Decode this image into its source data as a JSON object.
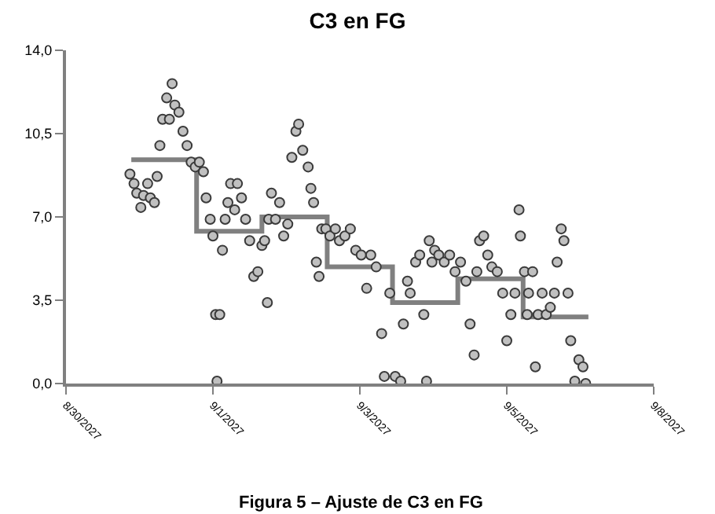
{
  "chart_data": {
    "type": "scatter",
    "title": "C3 en FG",
    "annotations": [
      "Figura 5 – Ajuste de C3 en FG"
    ],
    "xlim": [
      "2027-08-30",
      "2027-09-08"
    ],
    "xticks": [
      {
        "value": "2027-08-30",
        "label": "8/30/2027"
      },
      {
        "value": "2027-09-01T06:00",
        "label": "9/1/2027"
      },
      {
        "value": "2027-09-03T12:00",
        "label": "9/3/2027"
      },
      {
        "value": "2027-09-05T18:00",
        "label": "9/5/2027"
      },
      {
        "value": "2027-09-08",
        "label": "9/8/2027"
      }
    ],
    "ylim": [
      0,
      14
    ],
    "yticks": [
      {
        "value": 0,
        "label": "0,0"
      },
      {
        "value": 3.5,
        "label": "3,5"
      },
      {
        "value": 7,
        "label": "7,0"
      },
      {
        "value": 10.5,
        "label": "10,5"
      },
      {
        "value": 14,
        "label": "14,0"
      }
    ],
    "grid": false,
    "series": [
      {
        "type": "step",
        "marker": "none",
        "color": "#808080",
        "x": [
          "2027-08-31",
          "2027-09-01",
          "2027-09-02",
          "2027-09-03",
          "2027-09-04",
          "2027-09-05",
          "2027-09-06",
          "2027-09-07"
        ],
        "values": [
          9.4,
          6.4,
          7.0,
          4.9,
          3.4,
          4.4,
          2.8,
          2.8
        ]
      },
      {
        "marker": "circle",
        "color": "#c0c0c0",
        "x": [
          "2027-08-30T23:30",
          "2027-08-31T01:00",
          "2027-08-31T02:00",
          "2027-08-31T03:30",
          "2027-08-31T04:30",
          "2027-08-31T06:00",
          "2027-08-31T07:00",
          "2027-08-31T08:30",
          "2027-08-31T09:30",
          "2027-08-31T10:30",
          "2027-08-31T11:30",
          "2027-08-31T13:00",
          "2027-08-31T14:00",
          "2027-08-31T15:00",
          "2027-08-31T16:00",
          "2027-08-31T17:30",
          "2027-08-31T19:00",
          "2027-08-31T20:30",
          "2027-08-31T22:00",
          "2027-08-31T23:30",
          "2027-09-01T01:00",
          "2027-09-01T02:30",
          "2027-09-01T03:30",
          "2027-09-01T05:00",
          "2027-09-01T06:00",
          "2027-09-01T07:00",
          "2027-09-01T07:30",
          "2027-09-01T08:30",
          "2027-09-01T09:30",
          "2027-09-01T10:30",
          "2027-09-01T11:30",
          "2027-09-01T12:30",
          "2027-09-01T14:00",
          "2027-09-01T15:00",
          "2027-09-01T16:30",
          "2027-09-01T18:00",
          "2027-09-01T19:30",
          "2027-09-01T21:00",
          "2027-09-01T22:30",
          "2027-09-02T00:00",
          "2027-09-02T01:00",
          "2027-09-02T02:00",
          "2027-09-02T02:30",
          "2027-09-02T03:30",
          "2027-09-02T05:00",
          "2027-09-02T06:30",
          "2027-09-02T08:00",
          "2027-09-02T09:30",
          "2027-09-02T11:00",
          "2027-09-02T12:30",
          "2027-09-02T13:30",
          "2027-09-02T15:00",
          "2027-09-02T17:00",
          "2027-09-02T18:00",
          "2027-09-02T19:00",
          "2027-09-02T20:00",
          "2027-09-02T21:00",
          "2027-09-02T22:00",
          "2027-09-02T23:30",
          "2027-09-03T01:00",
          "2027-09-03T03:00",
          "2027-09-03T04:30",
          "2027-09-03T06:30",
          "2027-09-03T08:30",
          "2027-09-03T10:30",
          "2027-09-03T12:30",
          "2027-09-03T14:30",
          "2027-09-03T16:00",
          "2027-09-03T18:00",
          "2027-09-03T20:00",
          "2027-09-03T21:00",
          "2027-09-03T23:00",
          "2027-09-04T01:00",
          "2027-09-04T03:00",
          "2027-09-04T04:00",
          "2027-09-04T05:30",
          "2027-09-04T06:30",
          "2027-09-04T08:30",
          "2027-09-04T10:00",
          "2027-09-04T11:30",
          "2027-09-04T12:30",
          "2027-09-04T13:30",
          "2027-09-04T14:30",
          "2027-09-04T15:30",
          "2027-09-04T17:00",
          "2027-09-04T19:00",
          "2027-09-04T21:00",
          "2027-09-04T23:00",
          "2027-09-05T01:00",
          "2027-09-05T03:00",
          "2027-09-05T04:30",
          "2027-09-05T06:00",
          "2027-09-05T07:00",
          "2027-09-05T08:00",
          "2027-09-05T09:30",
          "2027-09-05T11:00",
          "2027-09-05T12:30",
          "2027-09-05T14:30",
          "2027-09-05T16:30",
          "2027-09-05T18:00",
          "2027-09-05T19:30",
          "2027-09-05T21:00",
          "2027-09-05T22:30",
          "2027-09-05T23:00",
          "2027-09-06T00:30",
          "2027-09-06T01:30",
          "2027-09-06T02:00",
          "2027-09-06T03:30",
          "2027-09-06T04:30",
          "2027-09-06T05:30",
          "2027-09-06T07:00",
          "2027-09-06T08:30",
          "2027-09-06T10:00",
          "2027-09-06T11:30",
          "2027-09-06T12:30",
          "2027-09-06T14:00",
          "2027-09-06T15:00",
          "2027-09-06T16:30",
          "2027-09-06T17:30",
          "2027-09-06T19:00",
          "2027-09-06T20:30",
          "2027-09-06T22:00",
          "2027-09-06T23:00"
        ],
        "values": [
          8.8,
          8.4,
          8.0,
          7.4,
          7.9,
          8.4,
          7.8,
          7.6,
          8.7,
          10.0,
          11.1,
          12.0,
          11.1,
          12.6,
          11.7,
          11.4,
          10.6,
          10.0,
          9.3,
          9.1,
          9.3,
          8.9,
          7.8,
          6.9,
          6.2,
          2.9,
          0.1,
          2.9,
          5.6,
          6.9,
          7.6,
          8.4,
          7.3,
          8.4,
          7.8,
          6.9,
          6.0,
          4.5,
          4.7,
          5.8,
          6.0,
          3.4,
          6.9,
          8.0,
          6.9,
          7.6,
          6.2,
          6.7,
          9.5,
          10.6,
          10.9,
          9.8,
          9.1,
          8.2,
          7.6,
          5.1,
          4.5,
          6.5,
          6.5,
          6.2,
          6.5,
          6.0,
          6.2,
          6.5,
          5.6,
          5.4,
          4.0,
          5.4,
          4.9,
          2.1,
          0.3,
          3.8,
          0.3,
          0.1,
          2.5,
          4.3,
          3.8,
          5.1,
          5.4,
          2.9,
          0.1,
          6.0,
          5.1,
          5.6,
          5.4,
          5.1,
          5.4,
          4.7,
          5.1,
          4.3,
          2.5,
          1.2,
          4.7,
          6.0,
          6.2,
          5.4,
          4.9,
          4.7,
          3.8,
          1.8,
          2.9,
          3.8,
          7.3,
          6.2,
          4.7,
          2.9,
          3.8,
          4.7,
          0.7,
          2.9,
          3.8,
          2.9,
          3.2,
          3.8,
          5.1,
          6.5,
          6.0,
          3.8,
          1.8,
          0.1,
          1.0,
          0.7,
          0.0
        ]
      }
    ]
  }
}
